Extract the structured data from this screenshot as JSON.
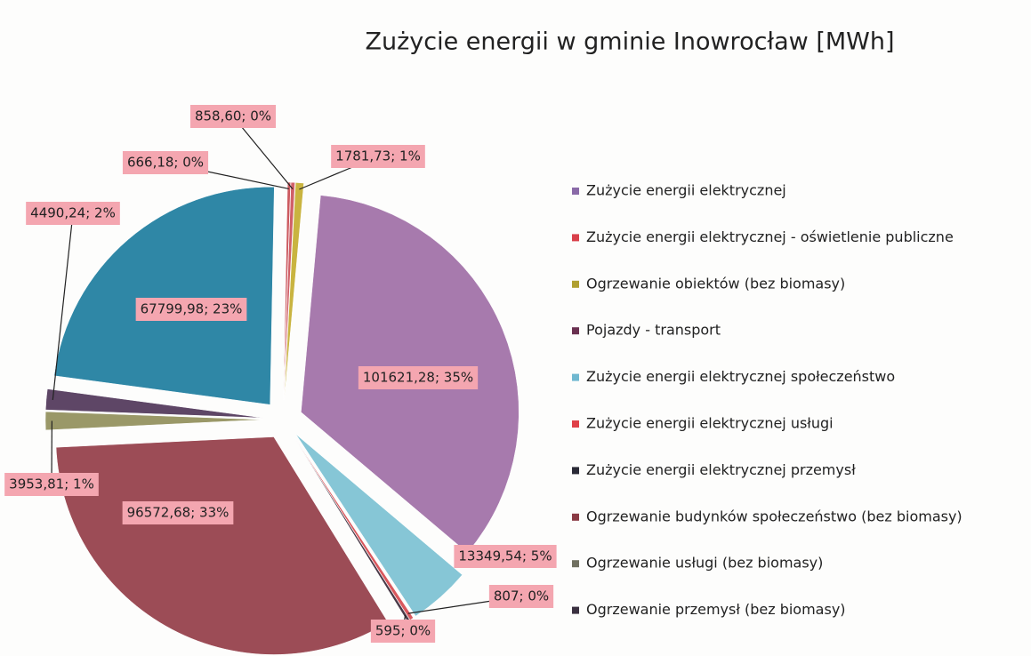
{
  "chart_data": {
    "type": "pie",
    "title": "Zużycie energii w gminie Inowrocław [MWh]",
    "values": [
      101621.28,
      13349.54,
      807,
      595,
      96572.68,
      3953.81,
      4490.24,
      67799.98,
      666.18,
      858.6,
      1781.73
    ],
    "value_labels": [
      "101621,28; 35%",
      "13349,54; 5%",
      "807; 0%",
      "595; 0%",
      "96572,68; 33%",
      "3953,81; 1%",
      "4490,24; 2%",
      "67799,98; 23%",
      "666,18; 0%",
      "858,60; 0%",
      "1781,73; 1%"
    ],
    "colors": [
      "#a77aad",
      "#86c6d6",
      "#d9585e",
      "#4a3a48",
      "#9c4c56",
      "#9a9868",
      "#5e4666",
      "#2f87a6",
      "#cc5a60",
      "#d06068",
      "#c9b440"
    ],
    "legend": [
      {
        "name": "Zużycie energii elektrycznej",
        "color": "#8a6aa8"
      },
      {
        "name": "Zużycie energii elektrycznej - oświetlenie publiczne",
        "color": "#d9404a"
      },
      {
        "name": "Ogrzewanie obiektów (bez biomasy)",
        "color": "#b0a030"
      },
      {
        "name": "Pojazdy - transport",
        "color": "#6a3050"
      },
      {
        "name": "Zużycie energii elektrycznej społeczeństwo",
        "color": "#70b8d0"
      },
      {
        "name": "Zużycie energii elektrycznej usługi",
        "color": "#e04048"
      },
      {
        "name": "Zużycie energii elektrycznej przemysł",
        "color": "#2a2a36"
      },
      {
        "name": "Ogrzewanie budynków społeczeństwo (bez biomasy)",
        "color": "#8a3a44"
      },
      {
        "name": "Ogrzewanie usługi (bez biomasy)",
        "color": "#707060"
      },
      {
        "name": "Ogrzewanie przemysł (bez biomasy)",
        "color": "#3a3040"
      }
    ]
  }
}
